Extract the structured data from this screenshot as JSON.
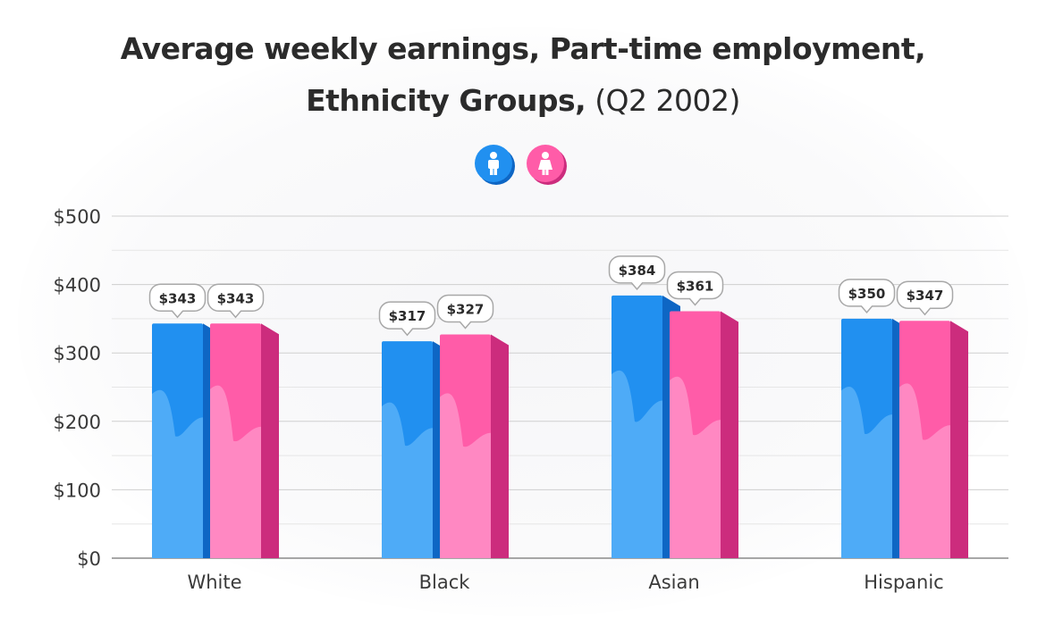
{
  "title": {
    "bold_line1": "Average weekly earnings, Part-time employment,",
    "bold_line2": "Ethnicity Groups,",
    "light_suffix": "(Q2 2002)"
  },
  "legend": [
    {
      "icon": "male-person-icon",
      "color": "#2190f0"
    },
    {
      "icon": "female-person-icon",
      "color": "#ff5ca8"
    }
  ],
  "colors": {
    "male_top": "#2190f0",
    "male_bottom": "#4eabf7",
    "male_side": "#0e66c4",
    "female_top": "#ff5ca8",
    "female_bottom": "#ff88c2",
    "female_side": "#cc2c7d",
    "grid": "#cfcfcf",
    "axis_text": "#3a3a3a"
  },
  "chart_data": {
    "type": "bar",
    "title": "Average weekly earnings, Part-time employment, Ethnicity Groups, (Q2 2002)",
    "categories": [
      "White",
      "Black",
      "Asian",
      "Hispanic"
    ],
    "series": [
      {
        "values": [
          343,
          317,
          384,
          350
        ],
        "labels": [
          "$343",
          "$317",
          "$384",
          "$350"
        ]
      },
      {
        "values": [
          343,
          327,
          361,
          347
        ],
        "labels": [
          "$343",
          "$327",
          "$361",
          "$347"
        ]
      }
    ],
    "ylim": [
      0,
      500
    ],
    "y_ticks": [
      0,
      100,
      200,
      300,
      400,
      500
    ],
    "y_tick_labels": [
      "$0",
      "$100",
      "$200",
      "$300",
      "$400",
      "$500"
    ],
    "grid": true
  }
}
